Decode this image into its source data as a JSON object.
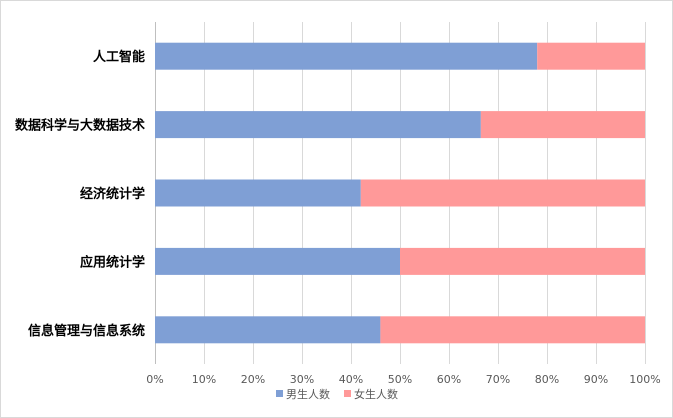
{
  "chart_data": {
    "type": "bar",
    "orientation": "horizontal",
    "stacked": "percent",
    "categories": [
      "人工智能",
      "数据科学与大数据技术",
      "经济统计学",
      "应用统计学",
      "信息管理与信息系统"
    ],
    "series": [
      {
        "name": "男生人数",
        "color": "#7f9fd5",
        "values": [
          78,
          66.5,
          42,
          50,
          46
        ]
      },
      {
        "name": "女生人数",
        "color": "#ff9999",
        "values": [
          22,
          33.5,
          58,
          50,
          54
        ]
      }
    ],
    "x_ticks": [
      "0%",
      "10%",
      "20%",
      "30%",
      "40%",
      "50%",
      "60%",
      "70%",
      "80%",
      "90%",
      "100%"
    ],
    "xlim": [
      0,
      100
    ],
    "grid": "vertical",
    "legend_position": "bottom"
  }
}
